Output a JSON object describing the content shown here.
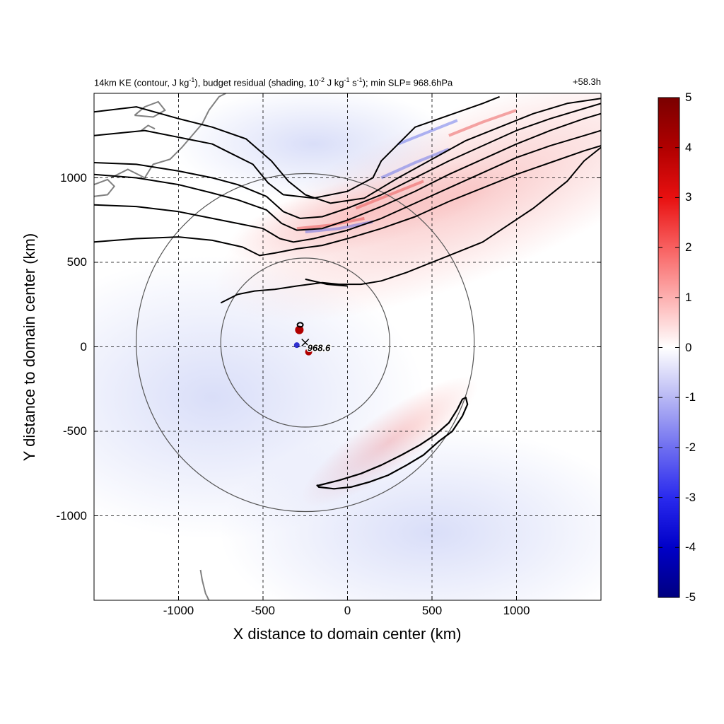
{
  "title_left": {
    "t1": "14km KE (contour, J kg",
    "s1": "-1",
    "t2": "), budget residual (shading, 10",
    "s2": "-2",
    "t3": " J kg",
    "s3": "-1",
    "t4": " s",
    "s4": "-1",
    "t5": "); min SLP= 968.6hPa"
  },
  "title_right": "+58.3h",
  "min_slp_label": "968.6",
  "colors": {
    "contour": "#000000",
    "range_ring": "#555555",
    "coastline": "#808080",
    "grid": "#000000",
    "colorbar_max": "#7a0000",
    "colorbar_zero": "#ffffff",
    "colorbar_min": "#000080"
  },
  "chart_data": {
    "type": "heatmap",
    "title": "14km KE (contour, J kg-1), budget residual (shading, 10-2 J kg-1 s-1); min SLP= 968.6hPa",
    "xlabel": "X distance to domain center (km)",
    "ylabel": "Y distance to domain center (km)",
    "xlim": [
      -1500,
      1500
    ],
    "ylim": [
      -1500,
      1500
    ],
    "x_ticks": [
      "-1000",
      "-500",
      "0",
      "500",
      "1000"
    ],
    "y_ticks": [
      "1000",
      "500",
      "0",
      "-500",
      "-1000"
    ],
    "x_tick_values": [
      -1000,
      -500,
      0,
      500,
      1000
    ],
    "y_tick_values": [
      1000,
      500,
      0,
      -500,
      -1000
    ],
    "grid": "dashed",
    "colorbar": {
      "range": [
        -5,
        5
      ],
      "ticks": [
        "5",
        "4",
        "3",
        "2",
        "1",
        "0",
        "-1",
        "-2",
        "-3",
        "-4",
        "-5"
      ],
      "tick_values": [
        5,
        4,
        3,
        2,
        1,
        0,
        -1,
        -2,
        -3,
        -4,
        -5
      ],
      "colormap": "blue-white-red"
    },
    "storm_center": {
      "x": -250,
      "y": 25,
      "marker": "x",
      "min_slp_hpa": 968.6
    },
    "range_rings_km": [
      500,
      1000
    ],
    "ke_contours": [
      [
        [
          -1500,
          1390
        ],
        [
          -1250,
          1420
        ],
        [
          -1000,
          1350
        ],
        [
          -800,
          1300
        ],
        [
          -600,
          1230
        ],
        [
          -450,
          1100
        ],
        [
          -350,
          980
        ],
        [
          -250,
          900
        ],
        [
          -100,
          850
        ],
        [
          100,
          880
        ],
        [
          300,
          1000
        ],
        [
          500,
          1110
        ],
        [
          700,
          1220
        ],
        [
          900,
          1300
        ],
        [
          1100,
          1380
        ],
        [
          1300,
          1440
        ],
        [
          1500,
          1470
        ]
      ],
      [
        [
          -1500,
          1090
        ],
        [
          -1250,
          1080
        ],
        [
          -1000,
          1040
        ],
        [
          -800,
          1000
        ],
        [
          -650,
          960
        ],
        [
          -480,
          890
        ],
        [
          -380,
          800
        ],
        [
          -280,
          760
        ],
        [
          -150,
          770
        ],
        [
          0,
          820
        ],
        [
          200,
          900
        ],
        [
          400,
          1000
        ],
        [
          600,
          1100
        ],
        [
          800,
          1190
        ],
        [
          1000,
          1280
        ],
        [
          1200,
          1350
        ],
        [
          1400,
          1410
        ],
        [
          1500,
          1440
        ]
      ],
      [
        [
          -1500,
          1020
        ],
        [
          -1250,
          1000
        ],
        [
          -1000,
          960
        ],
        [
          -800,
          910
        ],
        [
          -650,
          870
        ],
        [
          -480,
          810
        ],
        [
          -390,
          730
        ],
        [
          -300,
          690
        ],
        [
          -150,
          700
        ],
        [
          0,
          750
        ],
        [
          200,
          830
        ],
        [
          400,
          920
        ],
        [
          600,
          1020
        ],
        [
          800,
          1110
        ],
        [
          1000,
          1200
        ],
        [
          1200,
          1280
        ],
        [
          1400,
          1350
        ],
        [
          1500,
          1380
        ]
      ],
      [
        [
          -1500,
          840
        ],
        [
          -1250,
          830
        ],
        [
          -1000,
          800
        ],
        [
          -800,
          760
        ],
        [
          -650,
          730
        ],
        [
          -500,
          700
        ],
        [
          -400,
          640
        ],
        [
          -320,
          620
        ],
        [
          -200,
          640
        ],
        [
          0,
          690
        ],
        [
          200,
          760
        ],
        [
          400,
          850
        ],
        [
          600,
          940
        ],
        [
          800,
          1030
        ],
        [
          1000,
          1120
        ],
        [
          1200,
          1190
        ],
        [
          1400,
          1250
        ],
        [
          1500,
          1280
        ]
      ],
      [
        [
          -1500,
          620
        ],
        [
          -1250,
          640
        ],
        [
          -1000,
          650
        ],
        [
          -800,
          630
        ],
        [
          -620,
          590
        ],
        [
          -520,
          540
        ],
        [
          -430,
          555
        ],
        [
          -300,
          580
        ],
        [
          -150,
          600
        ],
        [
          0,
          640
        ],
        [
          200,
          700
        ],
        [
          400,
          770
        ],
        [
          600,
          860
        ],
        [
          800,
          940
        ],
        [
          1000,
          1020
        ],
        [
          1200,
          1090
        ],
        [
          1400,
          1160
        ],
        [
          1500,
          1190
        ]
      ],
      [
        [
          -1500,
          1250
        ],
        [
          -1200,
          1280
        ],
        [
          -950,
          1230
        ],
        [
          -800,
          1200
        ],
        [
          -700,
          1150
        ],
        [
          -560,
          1080
        ],
        [
          -470,
          970
        ],
        [
          -380,
          900
        ],
        [
          -200,
          880
        ],
        [
          0,
          920
        ],
        [
          150,
          1000
        ],
        [
          200,
          1100
        ],
        [
          300,
          1200
        ],
        [
          400,
          1300
        ],
        [
          600,
          1370
        ],
        [
          800,
          1440
        ],
        [
          900,
          1480
        ]
      ],
      [
        [
          -750,
          260
        ],
        [
          -650,
          310
        ],
        [
          -550,
          330
        ],
        [
          -430,
          340
        ],
        [
          -300,
          360
        ],
        [
          -150,
          380
        ],
        [
          -50,
          370
        ],
        [
          80,
          370
        ],
        [
          200,
          390
        ],
        [
          350,
          440
        ],
        [
          500,
          500
        ],
        [
          650,
          560
        ],
        [
          800,
          620
        ],
        [
          950,
          720
        ],
        [
          1100,
          820
        ],
        [
          1300,
          980
        ],
        [
          1400,
          1100
        ],
        [
          1500,
          1180
        ]
      ],
      [
        [
          -250,
          400
        ],
        [
          -120,
          370
        ],
        [
          0,
          360
        ]
      ]
    ],
    "ke_closed_contour": [
      [
        -170,
        -820
      ],
      [
        -50,
        -790
      ],
      [
        80,
        -750
      ],
      [
        200,
        -700
      ],
      [
        320,
        -640
      ],
      [
        430,
        -580
      ],
      [
        520,
        -520
      ],
      [
        600,
        -450
      ],
      [
        650,
        -370
      ],
      [
        680,
        -310
      ],
      [
        700,
        -300
      ],
      [
        710,
        -340
      ],
      [
        680,
        -410
      ],
      [
        620,
        -500
      ],
      [
        540,
        -560
      ],
      [
        450,
        -640
      ],
      [
        350,
        -700
      ],
      [
        240,
        -760
      ],
      [
        130,
        -800
      ],
      [
        20,
        -830
      ],
      [
        -80,
        -840
      ],
      [
        -170,
        -830
      ],
      [
        -180,
        -820
      ]
    ]
  }
}
